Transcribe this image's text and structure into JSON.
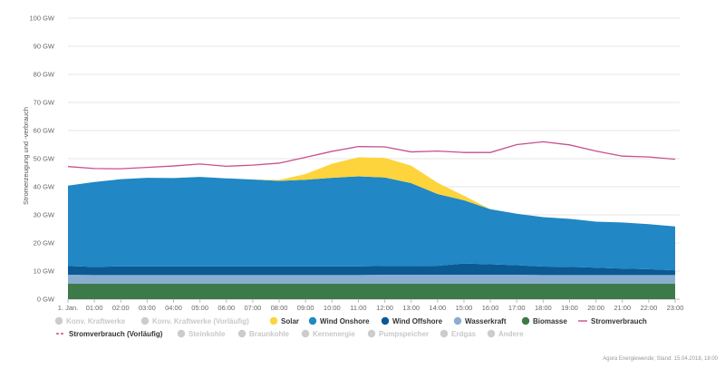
{
  "chart_data": {
    "type": "area",
    "ylabel": "Stromerzeugung und -verbrauch",
    "ylim": [
      0,
      100
    ],
    "y_ticks": [
      "0 GW",
      "10 GW",
      "20 GW",
      "30 GW",
      "40 GW",
      "50 GW",
      "60 GW",
      "70 GW",
      "80 GW",
      "90 GW",
      "100 GW"
    ],
    "y_tick_values": [
      0,
      10,
      20,
      30,
      40,
      50,
      60,
      70,
      80,
      90,
      100
    ],
    "categories": [
      "1. Jan.",
      "01:00",
      "02:00",
      "03:00",
      "04:00",
      "05:00",
      "06:00",
      "07:00",
      "08:00",
      "09:00",
      "10:00",
      "11:00",
      "12:00",
      "13:00",
      "14:00",
      "15:00",
      "16:00",
      "17:00",
      "18:00",
      "19:00",
      "20:00",
      "21:00",
      "22:00",
      "23:00"
    ],
    "stacked": true,
    "grid": true,
    "legend_position": "bottom",
    "series": [
      {
        "name": "Biomasse",
        "color": "#3d7a4a",
        "values": [
          5.5,
          5.5,
          5.5,
          5.5,
          5.5,
          5.5,
          5.5,
          5.5,
          5.5,
          5.5,
          5.5,
          5.5,
          5.5,
          5.5,
          5.5,
          5.5,
          5.5,
          5.5,
          5.5,
          5.5,
          5.5,
          5.5,
          5.5,
          5.5
        ]
      },
      {
        "name": "Wasserkraft",
        "color": "#8aaed0",
        "values": [
          3.2,
          3.1,
          3.1,
          3.1,
          3.1,
          3.1,
          3.1,
          3.1,
          3.1,
          3.1,
          3.1,
          3.1,
          3.2,
          3.2,
          3.2,
          3.2,
          3.2,
          3.2,
          3.1,
          3.1,
          3.1,
          3.1,
          3.1,
          3.1
        ]
      },
      {
        "name": "Wind Offshore",
        "color": "#0b5a94",
        "values": [
          3.1,
          2.9,
          3.1,
          3.1,
          3.1,
          3.1,
          3.1,
          3.1,
          3.1,
          3.1,
          3.1,
          3.1,
          3.1,
          3.1,
          3.2,
          4.0,
          3.7,
          3.4,
          3.0,
          2.9,
          2.6,
          2.3,
          2.1,
          1.7
        ]
      },
      {
        "name": "Wind Onshore",
        "color": "#2187c5",
        "values": [
          28.6,
          30.2,
          31.0,
          31.5,
          31.4,
          31.8,
          31.3,
          30.9,
          30.4,
          30.8,
          31.5,
          32.0,
          31.5,
          29.5,
          25.5,
          22.5,
          19.6,
          18.3,
          17.6,
          17.1,
          16.4,
          16.4,
          16.0,
          15.6
        ]
      },
      {
        "name": "Solar",
        "color": "#fdd43b",
        "values": [
          0,
          0,
          0,
          0,
          0,
          0,
          0,
          0,
          0.3,
          2.0,
          5.0,
          6.8,
          7.0,
          6.2,
          4.0,
          1.6,
          0,
          0,
          0,
          0,
          0,
          0,
          0,
          0
        ]
      }
    ],
    "lines": [
      {
        "name": "Stromverbrauch",
        "color": "#c8508a",
        "values": [
          47.2,
          46.5,
          46.4,
          46.9,
          47.4,
          48.1,
          47.3,
          47.7,
          48.4,
          50.5,
          52.6,
          54.3,
          54.2,
          52.4,
          52.7,
          52.2,
          52.2,
          55.0,
          56.0,
          54.9,
          52.7,
          50.9,
          50.6,
          49.8
        ]
      }
    ],
    "legend": [
      {
        "label": "Konv. Kraftwerke",
        "type": "dot",
        "color": "#cccccc",
        "disabled": true
      },
      {
        "label": "Konv. Kraftwerke (Vorläufig)",
        "type": "dot",
        "color": "#cccccc",
        "disabled": true
      },
      {
        "label": "Solar",
        "type": "dot",
        "color": "#fdd43b",
        "disabled": false
      },
      {
        "label": "Wind Onshore",
        "type": "dot",
        "color": "#2187c5",
        "disabled": false
      },
      {
        "label": "Wind Offshore",
        "type": "dot",
        "color": "#0b5a94",
        "disabled": false
      },
      {
        "label": "Wasserkraft",
        "type": "dot",
        "color": "#8aaed0",
        "disabled": false
      },
      {
        "label": "Biomasse",
        "type": "dot",
        "color": "#3d7a4a",
        "disabled": false
      },
      {
        "label": "Stromverbrauch",
        "type": "line",
        "color": "#c8508a",
        "disabled": false
      },
      {
        "label": "Stromverbrauch (Vorläufig)",
        "type": "dash",
        "color": "#c8508a",
        "disabled": false
      },
      {
        "label": "Steinkohle",
        "type": "dot",
        "color": "#cccccc",
        "disabled": true
      },
      {
        "label": "Braunkohle",
        "type": "dot",
        "color": "#cccccc",
        "disabled": true
      },
      {
        "label": "Kernenergie",
        "type": "dot",
        "color": "#cccccc",
        "disabled": true
      },
      {
        "label": "Pumpspeicher",
        "type": "dot",
        "color": "#cccccc",
        "disabled": true
      },
      {
        "label": "Erdgas",
        "type": "dot",
        "color": "#cccccc",
        "disabled": true
      },
      {
        "label": "Andere",
        "type": "dot",
        "color": "#cccccc",
        "disabled": true
      }
    ],
    "credit": "Agora Energiewende; Stand: 15.04.2018, 18:00"
  }
}
